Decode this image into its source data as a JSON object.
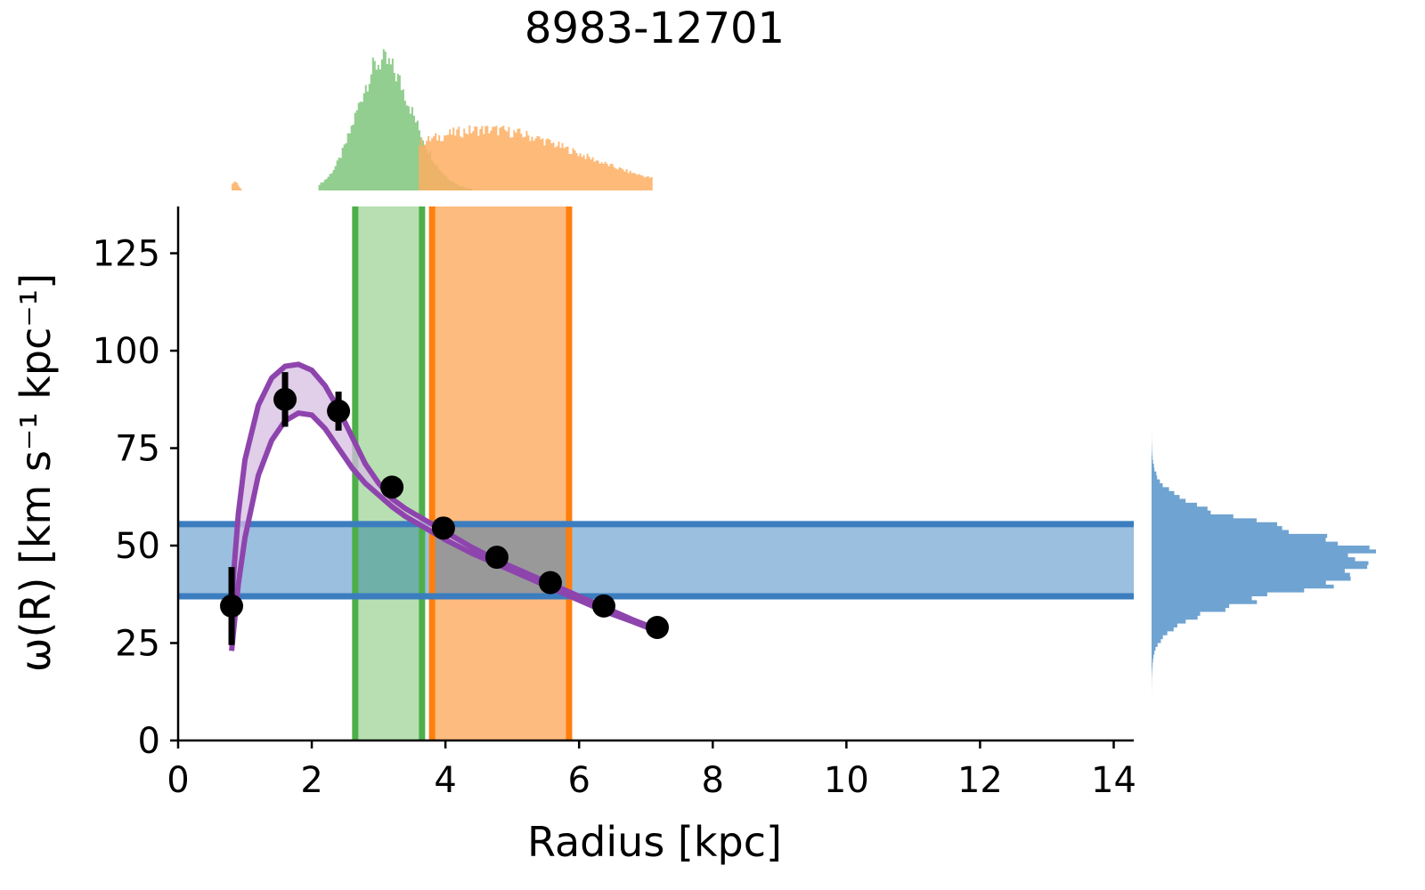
{
  "chart_data": {
    "type": "scatter",
    "title": "8983-12701",
    "xlabel": "Radius [kpc]",
    "ylabel": "ω(R) [km s⁻¹ kpc⁻¹]",
    "xlim": [
      0,
      14.3
    ],
    "ylim": [
      0,
      137
    ],
    "x_ticks": [
      0,
      2,
      4,
      6,
      8,
      10,
      12,
      14
    ],
    "y_ticks": [
      0,
      25,
      50,
      75,
      100,
      125
    ],
    "grid": false,
    "points": {
      "color": "#000000",
      "x": [
        0.8,
        1.6,
        2.4,
        3.2,
        3.97,
        4.77,
        5.57,
        6.37,
        7.17
      ],
      "y": [
        34.5,
        87.5,
        84.5,
        65.0,
        54.5,
        47.0,
        40.5,
        34.5,
        29.0
      ],
      "err": [
        10.0,
        7.0,
        5.0,
        2.0,
        1.5,
        1.5,
        1.5,
        1.5,
        1.5
      ]
    },
    "model_band": {
      "color": "#8e44ad",
      "fill": "#d7bde2",
      "x": [
        0.8,
        0.9,
        1.0,
        1.2,
        1.4,
        1.6,
        1.8,
        2.0,
        2.2,
        2.4,
        2.6,
        2.8,
        3.0,
        3.2,
        3.4,
        3.6,
        3.8,
        4.0,
        4.4,
        4.8,
        5.2,
        5.6,
        6.0,
        6.4,
        6.8,
        7.1
      ],
      "upper": [
        36,
        58,
        72,
        86,
        93,
        96,
        96.5,
        95,
        91,
        85,
        78,
        71,
        66,
        62,
        59.5,
        57.5,
        55.5,
        53.5,
        49.5,
        46,
        43,
        40,
        37,
        34,
        31,
        29
      ],
      "lower": [
        23,
        40,
        52,
        68,
        77,
        82,
        84,
        83.5,
        80,
        75,
        70,
        66,
        63,
        60,
        57.5,
        55.5,
        53.5,
        51.5,
        48,
        45,
        42,
        39,
        36,
        33,
        30.5,
        28.5
      ]
    },
    "bands": [
      {
        "orientation": "vertical",
        "from": 2.65,
        "to": 3.65,
        "line_color": "#4daf4a",
        "fill_color": "#b7dfb2"
      },
      {
        "orientation": "vertical",
        "from": 3.8,
        "to": 5.85,
        "line_color": "#ff7f0e",
        "fill_color": "#fdbb7f"
      },
      {
        "orientation": "horizontal",
        "from": 37.0,
        "to": 55.5,
        "line_color": "#3b7dbf",
        "fill_color": "#9bbfdf"
      }
    ],
    "overlap_color": "#999999",
    "top_histograms": [
      {
        "color": "#4daf4a",
        "fill": "#7fc57b",
        "peak": 3.05,
        "sigma": 0.38,
        "range": [
          2.1,
          4.4
        ],
        "height": 1.0
      },
      {
        "color": "#ff7f0e",
        "fill": "#fdae61",
        "peak": 4.6,
        "sigma": 1.4,
        "range": [
          3.6,
          7.1
        ],
        "height": 0.47
      },
      {
        "color": "#ff7f0e",
        "fill": "#fdae61",
        "peak": 0.85,
        "sigma": 0.05,
        "range": [
          0.8,
          0.95
        ],
        "height": 0.07
      }
    ],
    "right_histogram": {
      "color": "#3b7dbf",
      "fill": "#6fa3d1",
      "peak": 46.0,
      "sigma": 8.0,
      "range": [
        4,
        89
      ],
      "height": 1.0
    }
  }
}
